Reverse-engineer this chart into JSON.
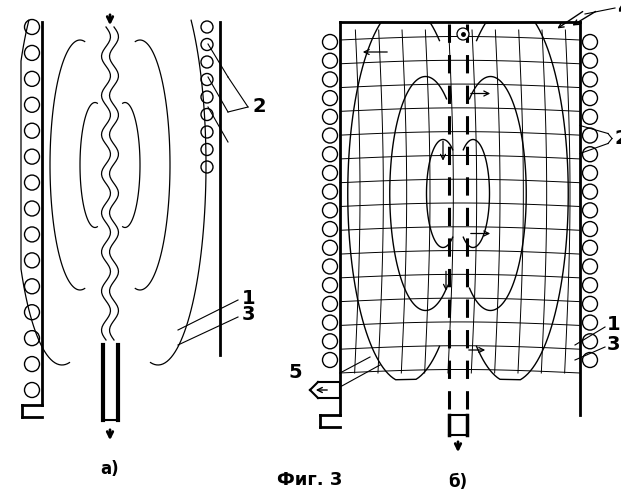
{
  "fig_width": 6.21,
  "fig_height": 5.0,
  "dpi": 100,
  "bg_color": "#ffffff",
  "title": "Фиг. 3",
  "label_a": "а)",
  "label_b": "б)"
}
